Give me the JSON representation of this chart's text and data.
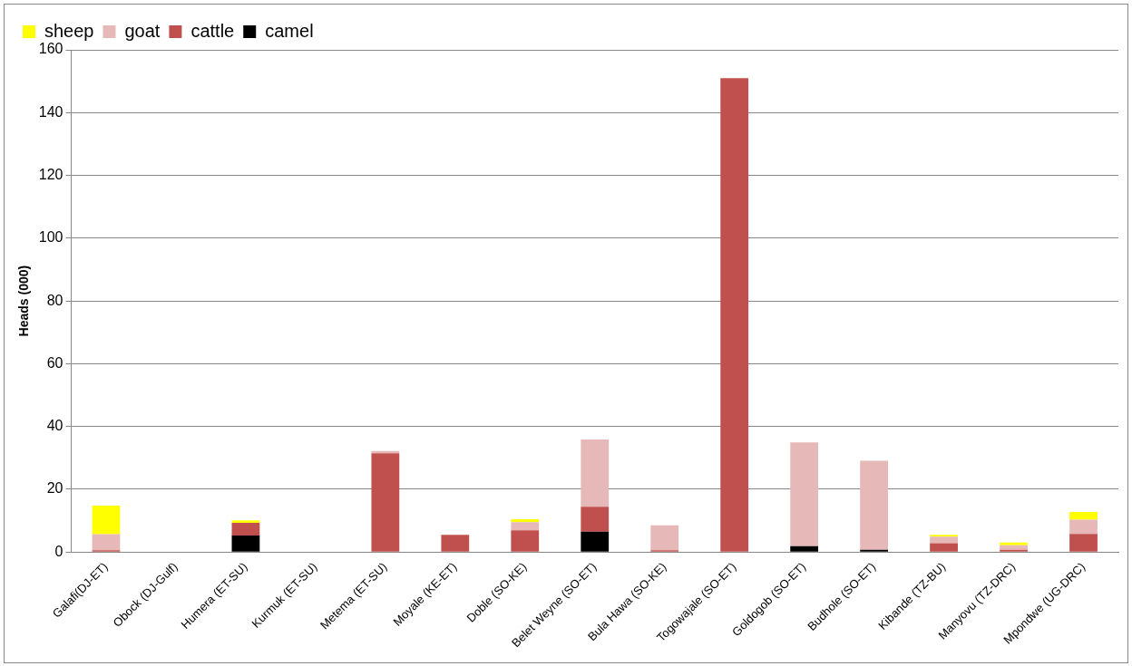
{
  "chart_data": {
    "type": "bar",
    "ylabel": "Heads (000)",
    "categories": [
      "Galafi(DJ-ET)",
      "Obock (DJ-Gulf)",
      "Humera (ET-SU)",
      "Kurmuk (ET-SU)",
      "Metema (ET-SU)",
      "Moyale (KE-ET)",
      "Doble (SO-KE)",
      "Belet Weyne (SO-ET)",
      "Bula Hawa (SO-KE)",
      "Togowajale (SO-ET)",
      "Goldogob (SO-ET)",
      "Budhole (SO-ET)",
      "Kibande (TZ-BU)",
      "Manyovu (TZ-DRC)",
      "Mpondwe (UG-DRC)"
    ],
    "stacked": true,
    "series": [
      {
        "name": "camel",
        "color": "#000000",
        "values": [
          0,
          0,
          5.3,
          0,
          0,
          0,
          0,
          6.5,
          0,
          0,
          1.9,
          0.7,
          0,
          0,
          0
        ]
      },
      {
        "name": "cattle",
        "color": "#c0504d",
        "values": [
          0.6,
          0,
          4.0,
          0,
          31.5,
          5.5,
          6.9,
          7.9,
          0.6,
          151,
          0,
          0,
          2.8,
          0.7,
          5.8
        ]
      },
      {
        "name": "goat",
        "color": "#e6b9b8",
        "values": [
          5.1,
          0,
          0,
          0,
          0.7,
          0,
          2.6,
          21.5,
          7.9,
          0,
          33.0,
          28.4,
          2.1,
          1.5,
          4.5
        ]
      },
      {
        "name": "sheep",
        "color": "#ffff00",
        "values": [
          9.1,
          0,
          0.8,
          0,
          0,
          0,
          1.0,
          0,
          0,
          0,
          0,
          0,
          0.6,
          0.8,
          2.5
        ]
      }
    ],
    "ylim": [
      0,
      160
    ],
    "yticks": [
      0,
      20,
      40,
      60,
      80,
      100,
      120,
      140,
      160
    ],
    "grid": "y",
    "legend": "top left"
  }
}
